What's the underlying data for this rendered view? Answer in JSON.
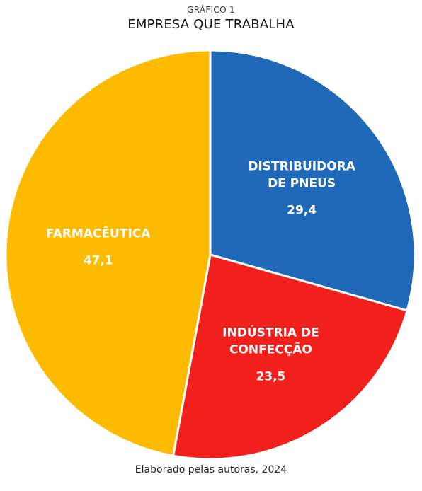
{
  "chart_data": {
    "type": "pie",
    "kicker": "GRÁFICO 1",
    "title": "EMPRESA QUE TRABALHA",
    "source": "Elaborado pelas autoras, 2024",
    "start_angle_deg": 0,
    "direction": "clockwise",
    "slices": [
      {
        "label_lines": [
          "DISTRIBUIDORA",
          "DE PNEUS"
        ],
        "value": 29.4,
        "value_text": "29,4",
        "color": "#2068b8"
      },
      {
        "label_lines": [
          "INDÚSTRIA DE",
          "CONFECÇÃO"
        ],
        "value": 23.5,
        "value_text": "23,5",
        "color": "#f2201c"
      },
      {
        "label_lines": [
          "FARMACÊUTICA"
        ],
        "value": 47.1,
        "value_text": "47,1",
        "color": "#fdbb00"
      }
    ]
  }
}
